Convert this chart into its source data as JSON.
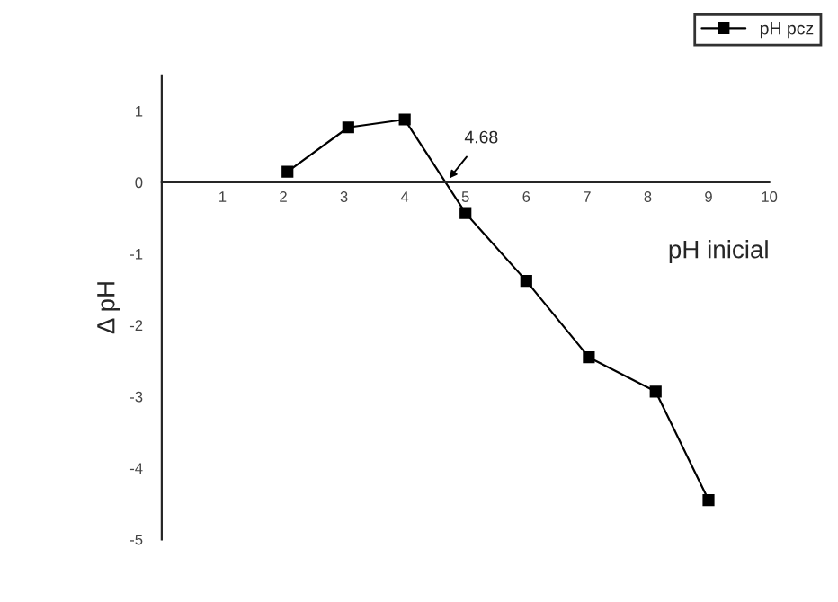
{
  "chart_data": {
    "type": "line",
    "xlabel": "pH inicial",
    "ylabel": "Δ pH",
    "x": [
      2.07,
      3.07,
      4.0,
      5.0,
      6.0,
      7.03,
      8.13,
      9.0
    ],
    "series": [
      {
        "name": "pH pcz",
        "color": "#000000",
        "values": [
          0.15,
          0.77,
          0.88,
          -0.43,
          -1.38,
          -2.45,
          -2.93,
          -4.45
        ]
      }
    ],
    "xlim": [
      0,
      10
    ],
    "xticks": [
      1,
      2,
      3,
      4,
      5,
      6,
      7,
      8,
      9,
      10
    ],
    "ylim": [
      -5,
      1.5
    ],
    "yticks": [
      -5,
      -4,
      -3,
      -2,
      -1,
      0,
      1
    ],
    "annotations": [
      {
        "text": "4.68",
        "x": 4.68,
        "y": 0
      }
    ],
    "marker": "square",
    "line_style": "solid",
    "legend": "top right",
    "grid": false
  }
}
